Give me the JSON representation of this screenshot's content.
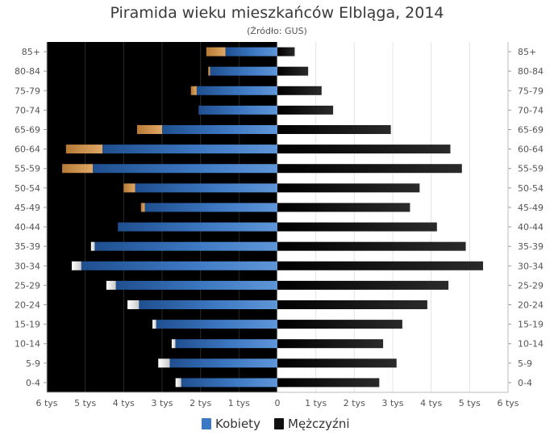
{
  "chart_data": {
    "type": "bar",
    "orientation": "horizontal-pyramid",
    "title": "Piramida wieku mieszkańców Elbląga, 2014",
    "subtitle": "(Źródło: GUS)",
    "categories": [
      "85+",
      "80-84",
      "75-79",
      "70-74",
      "65-69",
      "60-64",
      "55-59",
      "50-54",
      "45-49",
      "40-44",
      "35-39",
      "30-34",
      "25-29",
      "20-24",
      "15-19",
      "10-14",
      "5-9",
      "0-4"
    ],
    "series": [
      {
        "name": "Kobiety",
        "side": "left",
        "color": "#3d78c2",
        "values": [
          1350,
          1750,
          2100,
          2050,
          3000,
          4550,
          4800,
          3700,
          3450,
          4150,
          4750,
          5100,
          4200,
          3600,
          3150,
          2650,
          2800,
          2500
        ]
      },
      {
        "name": "Mężczyźni",
        "side": "right",
        "color": "#111111",
        "values": [
          450,
          800,
          1150,
          1450,
          2950,
          4500,
          4800,
          3700,
          3450,
          4150,
          4900,
          5350,
          4450,
          3900,
          3250,
          2750,
          3100,
          2650
        ]
      }
    ],
    "excess_overlay": {
      "color": "#d4944c",
      "values": [
        1850,
        1800,
        2250,
        2050,
        3650,
        5500,
        5600,
        4000,
        3550,
        4150,
        4850,
        5350,
        4450,
        3900,
        3250,
        2750,
        3100,
        2650
      ]
    },
    "xticks_left": [
      "6 tys",
      "5 tys",
      "4 tys",
      "3 tys",
      "2 tys",
      "1 tys",
      "0"
    ],
    "xticks_right": [
      "1 tys",
      "2 tys",
      "3 tys",
      "4 tys",
      "5 tys",
      "6 tys"
    ],
    "xlim": [
      -6000,
      6000
    ],
    "grid": true,
    "legend_position": "bottom-center",
    "background_left": "#000000",
    "background_right": "#ffffff"
  }
}
